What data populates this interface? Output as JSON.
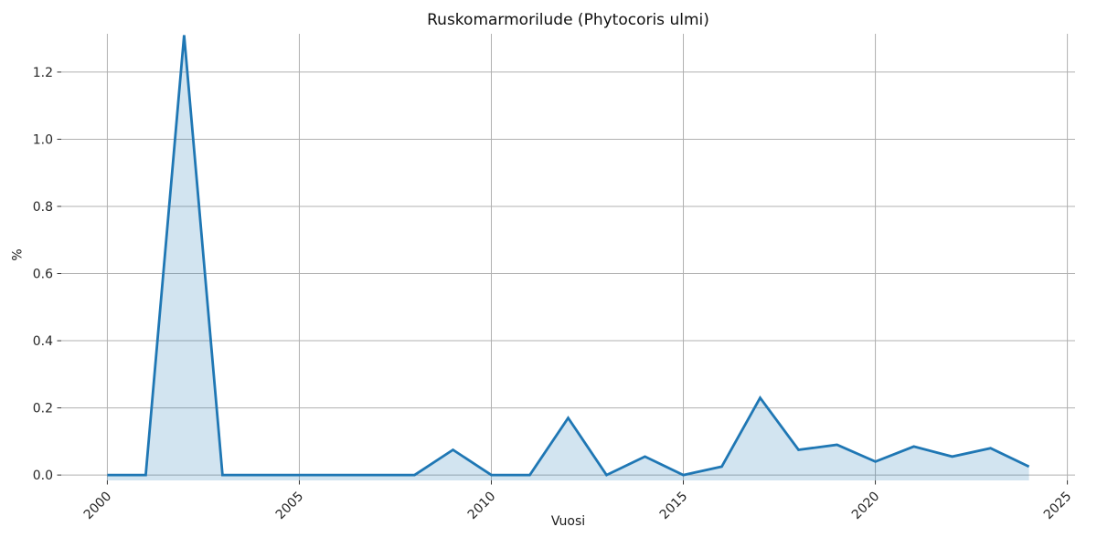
{
  "figure": {
    "title": "Ruskomarmorilude (Phytocoris ulmi)",
    "xlabel": "Vuosi",
    "ylabel": "%"
  },
  "chart_data": {
    "type": "area",
    "title": "Ruskomarmorilude (Phytocoris ulmi)",
    "xlabel": "Vuosi",
    "ylabel": "%",
    "x": [
      2000,
      2001,
      2002,
      2003,
      2004,
      2005,
      2006,
      2007,
      2008,
      2009,
      2010,
      2011,
      2012,
      2013,
      2014,
      2015,
      2016,
      2017,
      2018,
      2019,
      2020,
      2021,
      2022,
      2023,
      2024
    ],
    "values": [
      0.0,
      0.0,
      1.31,
      0.0,
      0.0,
      0.0,
      0.0,
      0.0,
      0.0,
      0.075,
      0.0,
      0.0,
      0.17,
      0.0,
      0.055,
      0.0,
      0.025,
      0.23,
      0.075,
      0.09,
      0.04,
      0.085,
      0.055,
      0.08,
      0.025
    ],
    "xticks": [
      2000,
      2005,
      2010,
      2015,
      2020,
      2025
    ],
    "xtick_labels": [
      "2000",
      "2005",
      "2010",
      "2015",
      "2020",
      "2025"
    ],
    "yticks": [
      0.0,
      0.2,
      0.4,
      0.6,
      0.8,
      1.0,
      1.2
    ],
    "ytick_labels": [
      "0.0",
      "0.2",
      "0.4",
      "0.6",
      "0.8",
      "1.0",
      "1.2"
    ],
    "xlim": [
      1998.8,
      2025.2
    ],
    "ylim": [
      -0.016,
      1.314
    ],
    "grid": true,
    "legend": false,
    "colors": {
      "line": "#1f77b4",
      "fill": "rgba(31,119,180,0.2)",
      "grid": "#b0b0b0",
      "tick": "#333333",
      "text": "#262626"
    }
  }
}
